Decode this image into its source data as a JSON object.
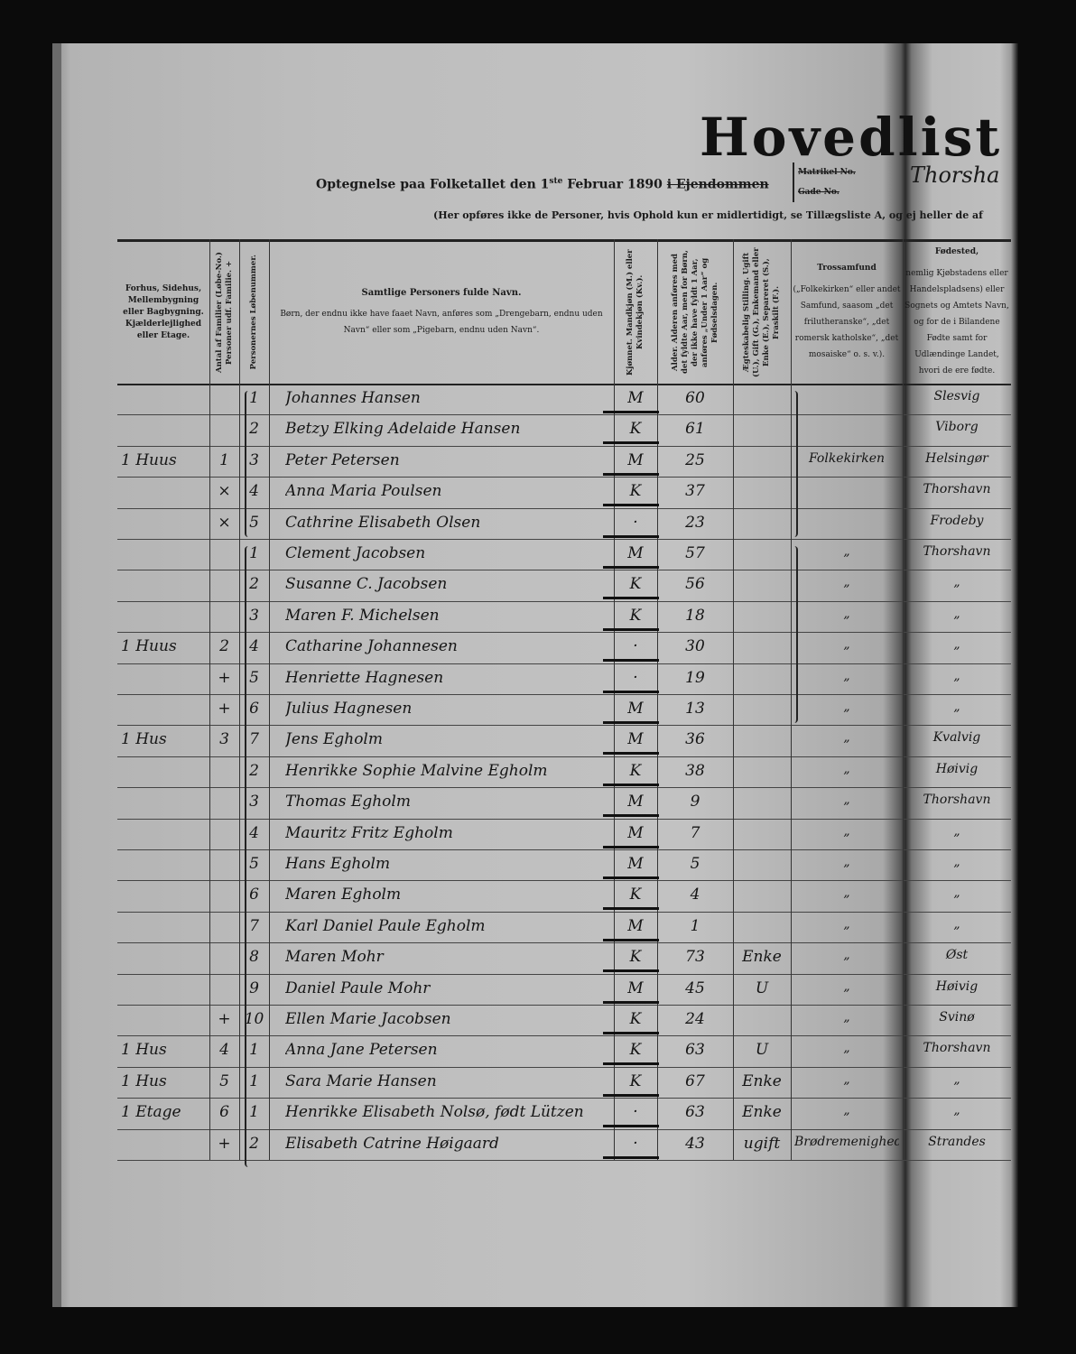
{
  "header": {
    "title": "Hovedlist",
    "subtitle_prefix": "Optegnelse paa Folketallet den 1",
    "subtitle_sup": "ste",
    "subtitle_date": " Februar 1890 ",
    "subtitle_struck": "i Ejendommen",
    "matrikel_label": "Matrikel No.",
    "gade_label": "Gade No.",
    "place_handwritten": "Thorsha",
    "note": "(Her opføres ikke de Personer, hvis Ophold kun er midlertidigt, se Tillægsliste A, og ej heller de af"
  },
  "columns": [
    {
      "id": "dwelling",
      "label": "Forhus, Sidehus, Mellembygning eller Bagbygning. Kjælderlejlighed eller Etage."
    },
    {
      "id": "family",
      "label": "Antal af Familier (Løbe-No.) Personer udf. Familie. +"
    },
    {
      "id": "number",
      "label": "Personernes Løbenummer."
    },
    {
      "id": "name",
      "label": "Samtlige Personers fulde Navn.",
      "sublabel": "Børn, der endnu ikke have faaet Navn, anføres som „Drengebarn, endnu uden Navn“ eller som „Pigebarn, endnu uden Navn“."
    },
    {
      "id": "sex",
      "label": "Kjønnet. Mandkjøn (M.) eller Kvindekjøn (Kv.)."
    },
    {
      "id": "age",
      "label": "Alder. Alderen anføres med det fyldte Aar, men for Børn, der ikke have fyldt 1 Aar, anføres „Under 1 Aar“ og Fødselsdagen."
    },
    {
      "id": "marital",
      "label": "Ægteskabelig Stilling. Ugift (U.), Gift (G.), Enkemand eller Enke (E.), Separeret (S.), Fraskilt (F.)."
    },
    {
      "id": "religion",
      "label": "Trossamfund",
      "sublabel": "(„Folkekirken“ eller andet Samfund, saasom „det frilutheranske“, „det romersk katholske“, „det mosaiske“ o. s. v.)."
    },
    {
      "id": "birthplace",
      "label": "Fødested,",
      "sublabel": "nemlig Kjøbstadens eller Handelspladsens) eller Sognets og Amtets Navn, og for de i Bilandene Fødte samt for Udlændinge Landet, hvori de ere fødte."
    }
  ],
  "rows": [
    {
      "dwelling": "",
      "family": "",
      "number": "1",
      "name": "Johannes Hansen",
      "sex": "M",
      "age": "60",
      "marital": "",
      "religion": "",
      "birthplace": "Slesvig"
    },
    {
      "dwelling": "",
      "family": "",
      "number": "2",
      "name": "Betzy Elking Adelaide Hansen",
      "sex": "K",
      "age": "61",
      "marital": "",
      "religion": "",
      "birthplace": "Viborg"
    },
    {
      "dwelling": "1 Huus",
      "family": "1",
      "number": "3",
      "name": "Peter Petersen",
      "sex": "M",
      "age": "25",
      "marital": "",
      "religion": "Folkekirken",
      "birthplace": "Helsingør"
    },
    {
      "dwelling": "",
      "family": "×",
      "number": "4",
      "name": "Anna Maria Poulsen",
      "sex": "K",
      "age": "37",
      "marital": "",
      "religion": "",
      "birthplace": "Thorshavn"
    },
    {
      "dwelling": "",
      "family": "×",
      "number": "5",
      "name": "Cathrine Elisabeth Olsen",
      "sex": "·",
      "age": "23",
      "marital": "",
      "religion": "",
      "birthplace": "Frodeby"
    },
    {
      "dwelling": "",
      "family": "",
      "number": "1",
      "name": "Clement Jacobsen",
      "sex": "M",
      "age": "57",
      "marital": "",
      "religion": "„",
      "birthplace": "Thorshavn"
    },
    {
      "dwelling": "",
      "family": "",
      "number": "2",
      "name": "Susanne C. Jacobsen",
      "sex": "K",
      "age": "56",
      "marital": "",
      "religion": "„",
      "birthplace": "„"
    },
    {
      "dwelling": "",
      "family": "",
      "number": "3",
      "name": "Maren F. Michelsen",
      "sex": "K",
      "age": "18",
      "marital": "",
      "religion": "„",
      "birthplace": "„"
    },
    {
      "dwelling": "1 Huus",
      "family": "2",
      "number": "4",
      "name": "Catharine Johannesen",
      "sex": "·",
      "age": "30",
      "marital": "",
      "religion": "„",
      "birthplace": "„"
    },
    {
      "dwelling": "",
      "family": "+",
      "number": "5",
      "name": "Henriette Hagnesen",
      "sex": "·",
      "age": "19",
      "marital": "",
      "religion": "„",
      "birthplace": "„"
    },
    {
      "dwelling": "",
      "family": "+",
      "number": "6",
      "name": "Julius Hagnesen",
      "sex": "M",
      "age": "13",
      "marital": "",
      "religion": "„",
      "birthplace": "„"
    },
    {
      "dwelling": "1 Hus",
      "family": "3",
      "number": "7",
      "name": "Jens Egholm",
      "sex": "M",
      "age": "36",
      "marital": "",
      "religion": "„",
      "birthplace": "Kvalvig"
    },
    {
      "dwelling": "",
      "family": "",
      "number": "2",
      "name": "Henrikke Sophie Malvine Egholm",
      "sex": "K",
      "age": "38",
      "marital": "",
      "religion": "„",
      "birthplace": "Høivig"
    },
    {
      "dwelling": "",
      "family": "",
      "number": "3",
      "name": "Thomas Egholm",
      "sex": "M",
      "age": "9",
      "marital": "",
      "religion": "„",
      "birthplace": "Thorshavn"
    },
    {
      "dwelling": "",
      "family": "",
      "number": "4",
      "name": "Mauritz Fritz Egholm",
      "sex": "M",
      "age": "7",
      "marital": "",
      "religion": "„",
      "birthplace": "„"
    },
    {
      "dwelling": "",
      "family": "",
      "number": "5",
      "name": "Hans Egholm",
      "sex": "M",
      "age": "5",
      "marital": "",
      "religion": "„",
      "birthplace": "„"
    },
    {
      "dwelling": "",
      "family": "",
      "number": "6",
      "name": "Maren Egholm",
      "sex": "K",
      "age": "4",
      "marital": "",
      "religion": "„",
      "birthplace": "„"
    },
    {
      "dwelling": "",
      "family": "",
      "number": "7",
      "name": "Karl Daniel Paule Egholm",
      "sex": "M",
      "age": "1",
      "marital": "",
      "religion": "„",
      "birthplace": "„"
    },
    {
      "dwelling": "",
      "family": "",
      "number": "8",
      "name": "Maren Mohr",
      "sex": "K",
      "age": "73",
      "marital": "Enke",
      "religion": "„",
      "birthplace": "Øst"
    },
    {
      "dwelling": "",
      "family": "",
      "number": "9",
      "name": "Daniel Paule Mohr",
      "sex": "M",
      "age": "45",
      "marital": "U",
      "religion": "„",
      "birthplace": "Høivig"
    },
    {
      "dwelling": "",
      "family": "+",
      "number": "10",
      "name": "Ellen Marie Jacobsen",
      "sex": "K",
      "age": "24",
      "marital": "",
      "religion": "„",
      "birthplace": "Svinø"
    },
    {
      "dwelling": "1 Hus",
      "family": "4",
      "number": "1",
      "name": "Anna Jane Petersen",
      "sex": "K",
      "age": "63",
      "marital": "U",
      "religion": "„",
      "birthplace": "Thorshavn"
    },
    {
      "dwelling": "1 Hus",
      "family": "5",
      "number": "1",
      "name": "Sara Marie Hansen",
      "sex": "K",
      "age": "67",
      "marital": "Enke",
      "religion": "„",
      "birthplace": "„"
    },
    {
      "dwelling": "1 Etage",
      "family": "6",
      "number": "1",
      "name": "Henrikke Elisabeth Nolsø, født Lützen",
      "sex": "·",
      "age": "63",
      "marital": "Enke",
      "religion": "„",
      "birthplace": "„"
    },
    {
      "dwelling": "",
      "family": "+",
      "number": "2",
      "name": "Elisabeth Catrine Høigaard",
      "sex": "·",
      "age": "43",
      "marital": "ugift",
      "religion": "Brødremenighed",
      "birthplace": "Strandes"
    }
  ]
}
